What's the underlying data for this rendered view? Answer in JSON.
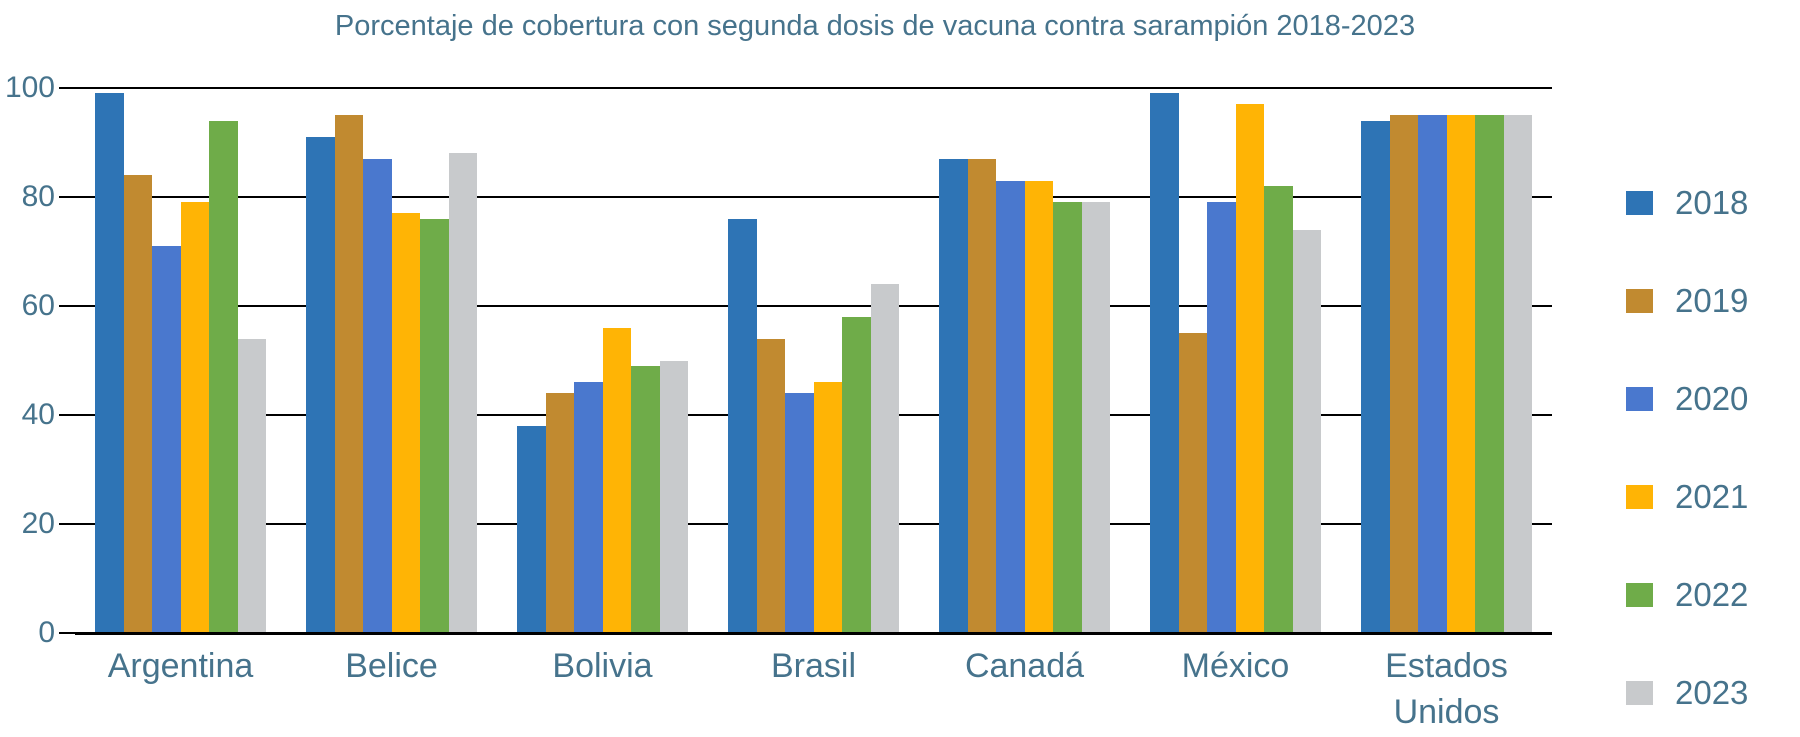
{
  "chart": {
    "title": "Porcentaje de cobertura con segunda dosis de vacuna contra sarampión 2018-2023",
    "text_color": "#46738C",
    "gridline_color": "#000000",
    "background_color": "#FFFFFF"
  },
  "chart_data": {
    "type": "bar",
    "title": "Porcentaje de cobertura con segunda dosis de vacuna contra sarampión 2018-2023",
    "categories": [
      "Argentina",
      "Belice",
      "Bolivia",
      "Brasil",
      "Canadá",
      "México",
      "Estados Unidos"
    ],
    "series": [
      {
        "name": "2018",
        "color": "#2E74B5",
        "values": [
          99,
          91,
          38,
          76,
          87,
          99,
          94
        ]
      },
      {
        "name": "2019",
        "color": "#C18A30",
        "values": [
          84,
          95,
          44,
          54,
          87,
          55,
          95
        ]
      },
      {
        "name": "2020",
        "color": "#4A78CE",
        "values": [
          71,
          87,
          46,
          44,
          83,
          79,
          95
        ]
      },
      {
        "name": "2021",
        "color": "#FFB405",
        "values": [
          79,
          77,
          56,
          46,
          83,
          97,
          95
        ]
      },
      {
        "name": "2022",
        "color": "#6FAC49",
        "values": [
          94,
          76,
          49,
          58,
          79,
          82,
          95
        ]
      },
      {
        "name": "2023",
        "color": "#C8CACC",
        "values": [
          54,
          88,
          50,
          64,
          79,
          74,
          95
        ]
      }
    ],
    "xlabel": "",
    "ylabel": "",
    "ylim": [
      0,
      100
    ],
    "yticks": [
      0,
      20,
      40,
      60,
      80,
      100
    ],
    "grid": "horizontal",
    "legend_position": "right",
    "legend_labels": [
      "2018",
      "2019",
      "2020",
      "2021",
      "2022",
      "2023"
    ]
  }
}
